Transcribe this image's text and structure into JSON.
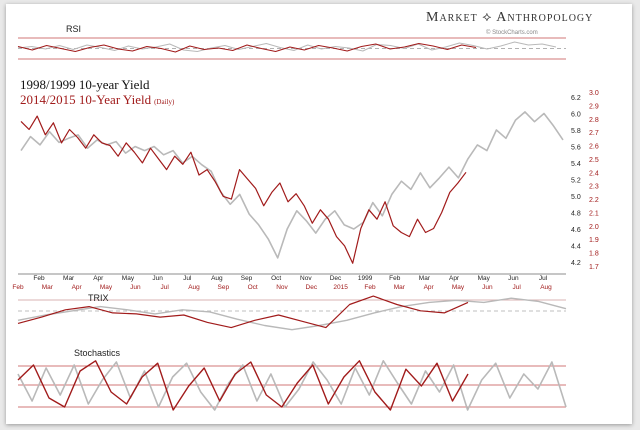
{
  "header": {
    "brand": "Market ⟡ Anthropology",
    "source": "© StockCharts.com"
  },
  "legend": {
    "line1": "1998/1999 10-year Yield",
    "line2": "2014/2015 10-Year Yield",
    "line2_note": "(Daily)"
  },
  "panels": {
    "rsi_label": "RSI",
    "trix_label": "TRIX",
    "stoch_label": "Stochastics"
  },
  "colors": {
    "series_1998": "#b9b9b9",
    "series_2014": "#a11b1b",
    "band": "#c24a4a"
  },
  "chart_data": [
    {
      "type": "line",
      "title": "RSI",
      "series": [
        {
          "name": "1998/1999",
          "values": [
            52,
            55,
            50,
            57,
            49,
            58,
            53,
            47,
            56,
            50,
            54,
            60,
            48,
            45,
            52,
            57,
            49,
            55,
            61,
            53,
            47,
            58,
            50,
            55,
            52,
            46,
            59,
            57,
            51,
            60,
            48,
            54,
            62,
            57,
            50,
            56,
            64,
            58,
            60,
            54
          ]
        },
        {
          "name": "2014/2015",
          "values": [
            55,
            48,
            57,
            51,
            45,
            53,
            58,
            50,
            46,
            55,
            51,
            44,
            56,
            49,
            52,
            47,
            58,
            51,
            45,
            54,
            48,
            57,
            52,
            46,
            55,
            60,
            50,
            54,
            61,
            56,
            49,
            58,
            53
          ]
        }
      ]
    },
    {
      "type": "line",
      "xlabel": "",
      "ylabel": "",
      "y_right_outer": [
        6.2,
        6.0,
        5.8,
        5.6,
        5.4,
        5.2,
        5.0,
        4.8,
        4.6,
        4.4,
        4.2
      ],
      "y_right_inner": [
        3.0,
        2.9,
        2.8,
        2.7,
        2.6,
        2.5,
        2.4,
        2.3,
        2.2,
        2.1,
        2.0,
        1.9,
        1.8,
        1.7
      ],
      "x_top_labels": [
        "Feb",
        "Mar",
        "Apr",
        "May",
        "Jun",
        "Jul",
        "Aug",
        "Sep",
        "Oct",
        "Nov",
        "Dec",
        "1999",
        "Feb",
        "Mar",
        "Apr",
        "May",
        "Jun",
        "Jul"
      ],
      "x_bottom_labels": [
        "Feb",
        "Mar",
        "Apr",
        "May",
        "Jun",
        "Jul",
        "Aug",
        "Sep",
        "Oct",
        "Nov",
        "Dec",
        "2015",
        "Feb",
        "Mar",
        "Apr",
        "May",
        "Jun",
        "Jul",
        "Aug"
      ],
      "series": [
        {
          "name": "1998/1999 10-year Yield",
          "axis": "outer",
          "values": [
            5.55,
            5.72,
            5.62,
            5.78,
            5.65,
            5.7,
            5.74,
            5.58,
            5.68,
            5.62,
            5.66,
            5.52,
            5.6,
            5.55,
            5.6,
            5.5,
            5.55,
            5.4,
            5.48,
            5.38,
            5.3,
            5.05,
            4.9,
            5.02,
            4.78,
            4.65,
            4.48,
            4.25,
            4.6,
            4.82,
            4.7,
            4.55,
            4.72,
            4.82,
            4.65,
            4.6,
            4.68,
            4.92,
            4.76,
            5.02,
            5.18,
            5.08,
            5.28,
            5.1,
            5.22,
            5.35,
            5.22,
            5.45,
            5.62,
            5.55,
            5.8,
            5.7,
            5.92,
            6.02,
            5.9,
            6.0,
            5.85,
            5.68
          ]
        },
        {
          "name": "2014/2015 10-Year Yield",
          "axis": "inner",
          "values": [
            2.78,
            2.72,
            2.82,
            2.68,
            2.77,
            2.62,
            2.72,
            2.66,
            2.58,
            2.68,
            2.62,
            2.6,
            2.52,
            2.62,
            2.55,
            2.47,
            2.58,
            2.5,
            2.42,
            2.52,
            2.46,
            2.55,
            2.38,
            2.42,
            2.33,
            2.22,
            2.2,
            2.42,
            2.35,
            2.28,
            2.15,
            2.25,
            2.32,
            2.18,
            2.24,
            2.15,
            2.02,
            2.12,
            2.05,
            1.92,
            1.85,
            1.72,
            1.98,
            2.12,
            2.05,
            2.18,
            2.0,
            1.95,
            1.92,
            2.05,
            1.95,
            1.98,
            2.1,
            2.25,
            2.32,
            2.4
          ]
        }
      ]
    },
    {
      "type": "line",
      "title": "TRIX",
      "series": [
        {
          "name": "1998/1999",
          "values": [
            -0.05,
            0.0,
            0.04,
            0.08,
            0.05,
            0.01,
            0.05,
            0.03,
            -0.04,
            -0.1,
            -0.14,
            -0.1,
            -0.05,
            0.02,
            0.08,
            0.12,
            0.14,
            0.12,
            0.16,
            0.13,
            0.06
          ]
        },
        {
          "name": "2014/2015",
          "values": [
            -0.08,
            -0.02,
            0.05,
            0.08,
            0.02,
            0.01,
            -0.02,
            0.0,
            -0.07,
            -0.12,
            -0.05,
            0.0,
            -0.06,
            -0.12,
            0.1,
            0.18,
            0.1,
            0.04,
            0.02,
            0.12
          ]
        }
      ]
    },
    {
      "type": "line",
      "title": "Stochastics",
      "series": [
        {
          "name": "1998/1999",
          "values": [
            70,
            25,
            80,
            35,
            85,
            20,
            60,
            90,
            30,
            75,
            15,
            65,
            88,
            40,
            10,
            55,
            85,
            25,
            70,
            15,
            45,
            90,
            60,
            20,
            80,
            35,
            92,
            55,
            20,
            75,
            40,
            85,
            10,
            60,
            88,
            30,
            70,
            45,
            90,
            15
          ]
        },
        {
          "name": "2014/2015",
          "values": [
            60,
            85,
            30,
            15,
            75,
            92,
            40,
            20,
            65,
            88,
            10,
            50,
            80,
            25,
            70,
            90,
            35,
            15,
            55,
            85,
            20,
            65,
            92,
            40,
            10,
            78,
            50,
            88,
            25,
            70
          ]
        }
      ]
    }
  ]
}
